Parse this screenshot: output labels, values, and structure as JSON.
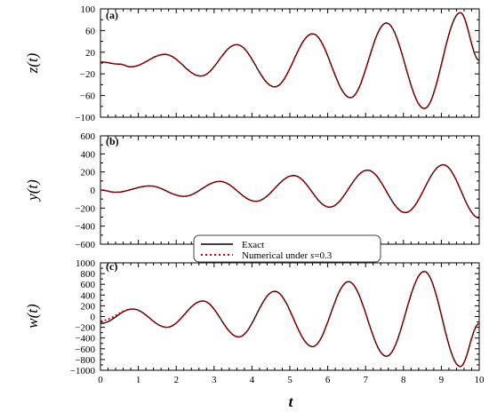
{
  "chart_data": [
    {
      "type": "line",
      "panel": "(a)",
      "ylabel": "z(t)",
      "xlabel": "",
      "xlim": [
        0,
        10
      ],
      "ylim": [
        -100,
        100
      ],
      "yticks": [
        -100,
        -60,
        -20,
        20,
        60,
        100
      ],
      "xticks": [],
      "x": [
        0,
        0.5,
        0.8,
        1.7,
        2.65,
        3.6,
        4.6,
        5.6,
        6.6,
        7.55,
        8.55,
        9.5,
        10
      ],
      "series": [
        {
          "name": "Exact",
          "values": [
            2,
            -2,
            -7,
            16,
            -24,
            34,
            -44,
            54,
            -64,
            74,
            -84,
            93,
            5
          ]
        },
        {
          "name": "Numerical under s=0.3",
          "values": [
            2,
            -2,
            -7,
            16,
            -24,
            34,
            -44,
            54,
            -64,
            74,
            -84,
            93,
            5
          ]
        }
      ]
    },
    {
      "type": "line",
      "panel": "(b)",
      "ylabel": "y(t)",
      "xlabel": "",
      "xlim": [
        0,
        10
      ],
      "ylim": [
        -600,
        600
      ],
      "yticks": [
        -600,
        -400,
        -200,
        0,
        200,
        400,
        600
      ],
      "xticks": [],
      "x": [
        0,
        0.4,
        1.3,
        2.2,
        3.15,
        4.1,
        5.1,
        6.05,
        7.05,
        8.05,
        9.05,
        10
      ],
      "series": [
        {
          "name": "Exact",
          "values": [
            0,
            -25,
            45,
            -70,
            95,
            -125,
            160,
            -190,
            220,
            -250,
            280,
            -310
          ]
        },
        {
          "name": "Numerical under s=0.3",
          "values": [
            0,
            -25,
            45,
            -70,
            95,
            -125,
            160,
            -190,
            220,
            -250,
            280,
            -310
          ]
        }
      ]
    },
    {
      "type": "line",
      "panel": "(c)",
      "ylabel": "w(t)",
      "xlabel": "t",
      "xlim": [
        0,
        10
      ],
      "ylim": [
        -1000,
        1000
      ],
      "yticks": [
        -1000,
        -800,
        -600,
        -400,
        -200,
        0,
        200,
        400,
        600,
        800,
        1000
      ],
      "xticks": [
        0,
        1,
        2,
        3,
        4,
        5,
        6,
        7,
        8,
        9,
        10
      ],
      "x": [
        0,
        0.85,
        1.75,
        2.7,
        3.65,
        4.6,
        5.6,
        6.55,
        7.55,
        8.55,
        9.5,
        10
      ],
      "series": [
        {
          "name": "Exact",
          "values": [
            -130,
            140,
            -200,
            290,
            -380,
            470,
            -560,
            650,
            -740,
            840,
            -930,
            -130
          ]
        },
        {
          "name": "Numerical under s=0.3",
          "values": [
            -80,
            140,
            -200,
            290,
            -380,
            470,
            -560,
            650,
            -740,
            840,
            -930,
            -130
          ]
        }
      ]
    }
  ],
  "legend": {
    "position": "inside-left-of-center between panels (b) and (c)",
    "entries": [
      {
        "label": "Exact",
        "color": "#000000",
        "style": "solid"
      },
      {
        "label_prefix": "Numerical under ",
        "label_var": "s",
        "label_suffix": "=0.3",
        "color": "#e00000",
        "style": "dotted"
      }
    ]
  },
  "colors": {
    "exact": "#000000",
    "numerical": "#e00000"
  }
}
